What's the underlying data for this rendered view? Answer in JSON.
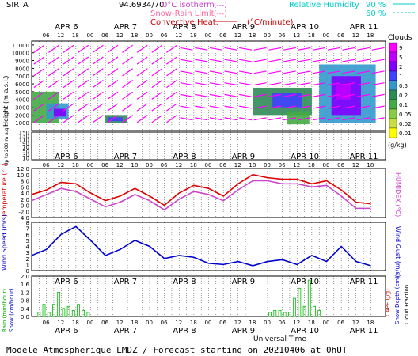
{
  "header": {
    "station": "SIRTA",
    "coords": "94.6934/70",
    "isotherm_label": "0°C isotherm",
    "snow_rain_label": "Snow-Rain Limit",
    "convective_label": "Convective Heat.",
    "convective_unit": "(°C/minute)",
    "rh_label": "Relative Humidity",
    "rh_90": "90 %",
    "rh_60": "60 %",
    "legend_dash": "(---)",
    "legend_dash2": "(---)"
  },
  "footer": {
    "model_text": "Modele Atmospherique LMDZ / Forecast starting on 20210406 at 0hUT",
    "universal_time": "Universal Time"
  },
  "axes": {
    "date_labels": [
      "APR 6",
      "APR 7",
      "APR 8",
      "APR 9",
      "APR 10",
      "APR 11"
    ],
    "hour_labels_top": [
      "06",
      "12",
      "18",
      "00",
      "06",
      "12",
      "18",
      "00",
      "06",
      "12",
      "18",
      "00",
      "06",
      "12",
      "18",
      "00",
      "06",
      "12",
      "18",
      "00",
      "06",
      "12",
      "18"
    ],
    "hour_labels_bottom": [
      "06",
      "12",
      "18",
      "00",
      "06",
      "12",
      "18",
      "00",
      "06",
      "12",
      "18",
      "00",
      "06",
      "12",
      "18",
      "00",
      "06",
      "12",
      "18",
      "00",
      "06",
      "12",
      "18"
    ],
    "height_ticks_upper": [
      "11000",
      "10000",
      "9000",
      "8000",
      "7000",
      "6000",
      "5000",
      "4000",
      "3000",
      "2000",
      "1000"
    ],
    "height_ticks_lower": [
      "150",
      "140",
      "130",
      "120",
      "110",
      "100",
      "90",
      "80",
      "70",
      "60",
      "50",
      "40",
      "30",
      "20",
      "10"
    ],
    "height_label": "Height (m a.s.l.)",
    "low_label": "Up to 200 m a.g.l.",
    "clouds_label": "Clouds",
    "clouds_unit": "(g/kg)",
    "cloud_ticks": [
      "9",
      "5",
      "2",
      "1",
      "0.5",
      "0.2",
      "0.1",
      "0.05",
      "0.02",
      "0.01"
    ],
    "cloud_colors": [
      "#ff00ff",
      "#c000ff",
      "#8000ff",
      "#4040ff",
      "#3399cc",
      "#2e8b57",
      "#44aa44",
      "#88cc44",
      "#ccdd44",
      "#ffff00"
    ],
    "temp_ticks": [
      "12.0",
      "10.0",
      "8.0",
      "6.0",
      "4.0",
      "2.0",
      "0.0",
      "-2.0",
      "-4.0"
    ],
    "temp_label": "Temperature (°C)",
    "humidex_label": "HUMIDEX (°C)",
    "wind_ticks": [
      "8",
      "7",
      "6",
      "5",
      "4",
      "3",
      "2",
      "1",
      "0"
    ],
    "wind_label": "Wind Speed (m/s)",
    "gust_label": "Wind Gust (m/s)",
    "rain_ticks": [
      "2.0",
      "1.8",
      "1.6",
      "1.4",
      "1.2",
      "1.0",
      "0.8",
      "0.6",
      "0.4",
      "0.2",
      "0.0"
    ],
    "rain_label": "Rain (mm/hour)",
    "snow_label": "Snow (cm/hour)",
    "cape_label": "CAPE (J/g)",
    "snowdepth_label": "Snow Depth (cm)",
    "cloudfrac_label": "Cloud Fraction"
  },
  "chart_data": [
    {
      "type": "line",
      "title": "Temperature",
      "ylabel": "Temperature (°C)",
      "ylim": [
        -4,
        12
      ],
      "x_hours": [
        0,
        6,
        12,
        18,
        24,
        30,
        36,
        42,
        48,
        54,
        60,
        66,
        72,
        78,
        84,
        90,
        96,
        102,
        108,
        114,
        120,
        126,
        132,
        138
      ],
      "series": [
        {
          "name": "Temperature",
          "color": "#e00000",
          "values": [
            3.5,
            5.0,
            7.5,
            7.0,
            4.0,
            1.5,
            3.0,
            5.5,
            3.0,
            0.0,
            4.0,
            6.5,
            5.5,
            3.0,
            7.0,
            10.0,
            9.0,
            8.5,
            8.5,
            7.0,
            8.0,
            5.0,
            1.0,
            0.5
          ]
        },
        {
          "name": "HUMIDEX",
          "color": "#cc44cc",
          "values": [
            1.5,
            3.5,
            5.5,
            4.5,
            2.0,
            -0.5,
            1.0,
            3.5,
            1.5,
            -1.5,
            2.0,
            4.5,
            3.5,
            1.5,
            5.0,
            8.0,
            8.0,
            7.0,
            7.0,
            6.0,
            6.5,
            3.0,
            -1.0,
            -1.0
          ]
        }
      ]
    },
    {
      "type": "line",
      "title": "Wind Speed",
      "ylabel": "Wind Speed (m/s)",
      "ylim": [
        0,
        8
      ],
      "x_hours": [
        0,
        6,
        12,
        18,
        24,
        30,
        36,
        42,
        48,
        54,
        60,
        66,
        72,
        78,
        84,
        90,
        96,
        102,
        108,
        114,
        120,
        126,
        132,
        138
      ],
      "series": [
        {
          "name": "Wind Speed",
          "color": "#0000cc",
          "values": [
            2.5,
            3.5,
            6.0,
            7.3,
            5.0,
            2.5,
            3.5,
            5.0,
            4.0,
            2.0,
            2.5,
            2.2,
            1.2,
            1.0,
            1.5,
            0.8,
            1.5,
            1.8,
            1.0,
            2.5,
            1.5,
            4.0,
            1.5,
            0.8
          ]
        }
      ]
    },
    {
      "type": "bar",
      "title": "Rain",
      "ylabel": "Rain (mm/hour)",
      "ylim": [
        0,
        2.0
      ],
      "x_hours": [
        3,
        5,
        7,
        9,
        11,
        13,
        15,
        17,
        19,
        21,
        23,
        97,
        99,
        101,
        103,
        105,
        107,
        109,
        111,
        113,
        115,
        117
      ],
      "series": [
        {
          "name": "Rain",
          "color": "#00bb00",
          "values": [
            0.2,
            0.6,
            0.2,
            0.6,
            1.2,
            0.4,
            0.5,
            0.3,
            0.6,
            0.3,
            0.2,
            0.2,
            0.3,
            0.3,
            0.2,
            0.2,
            0.9,
            1.4,
            0.5,
            1.8,
            0.5,
            0.3
          ]
        }
      ]
    }
  ]
}
